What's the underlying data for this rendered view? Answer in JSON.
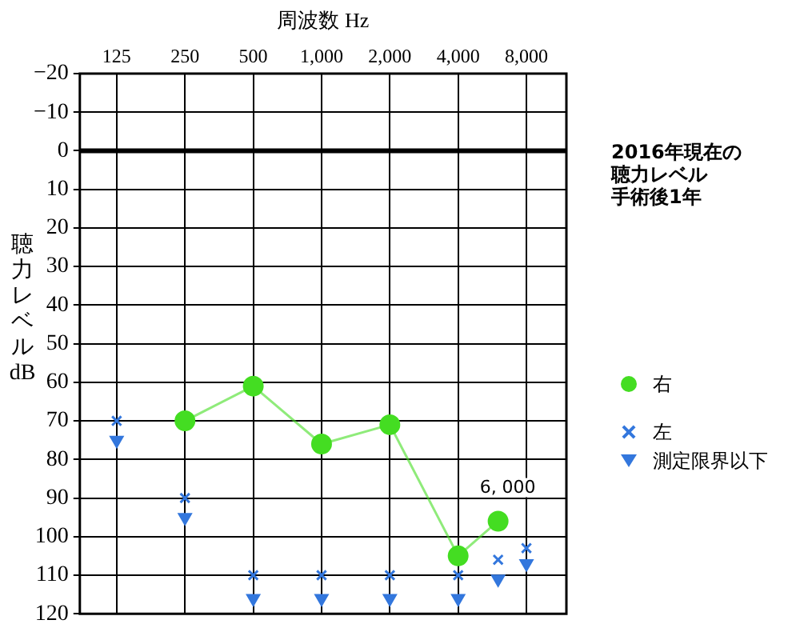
{
  "chart_data": {
    "type": "line",
    "xlabel": "周波数 Hz",
    "ylabel": "聴力レベル dB",
    "log": "x",
    "xlim": [
      86,
      12000
    ],
    "xticks": [
      125,
      250,
      500,
      {
        "value": 1000,
        "label": "1,000"
      },
      {
        "value": 2000,
        "label": "2,000"
      },
      {
        "value": 4000,
        "label": "4,000"
      },
      {
        "value": 8000,
        "label": "8,000"
      }
    ],
    "ylim": [
      120,
      -20
    ],
    "yticks": [
      {
        "value": -20,
        "label": "−20"
      },
      {
        "value": -10,
        "label": "−10"
      },
      0,
      10,
      20,
      30,
      40,
      50,
      60,
      70,
      80,
      90,
      100,
      110,
      120
    ],
    "grid": true,
    "legend": "right",
    "ref_lines": [
      {
        "axis": "y",
        "value": 0,
        "color": "#000000"
      }
    ],
    "annotations": [
      {
        "text": "6, 000",
        "x": 6000,
        "y": 96
      },
      "2016年現在の",
      "聴力レベル",
      "手術後1年"
    ],
    "series": [
      {
        "name": "右",
        "type": "line",
        "marker": "circle",
        "color": "#44dd22",
        "x": [
          250,
          500,
          1000,
          2000,
          4000,
          6000
        ],
        "values": [
          70,
          61,
          76,
          71,
          105,
          96
        ]
      },
      {
        "name": "左",
        "type": "scatter",
        "marker": "cross",
        "color": "#3377dd",
        "x": [
          125,
          250,
          500,
          1000,
          2000,
          4000,
          6000,
          8000
        ],
        "values": [
          70,
          90,
          110,
          110,
          110,
          110,
          106,
          103
        ]
      },
      {
        "name": "測定限界以下",
        "type": "scatter",
        "marker": "triangle",
        "color": "#3377dd",
        "x": [
          125,
          250,
          500,
          1000,
          2000,
          4000,
          6000,
          8000
        ],
        "values": [
          75,
          95,
          116,
          116,
          116,
          116,
          111,
          107
        ]
      }
    ]
  }
}
